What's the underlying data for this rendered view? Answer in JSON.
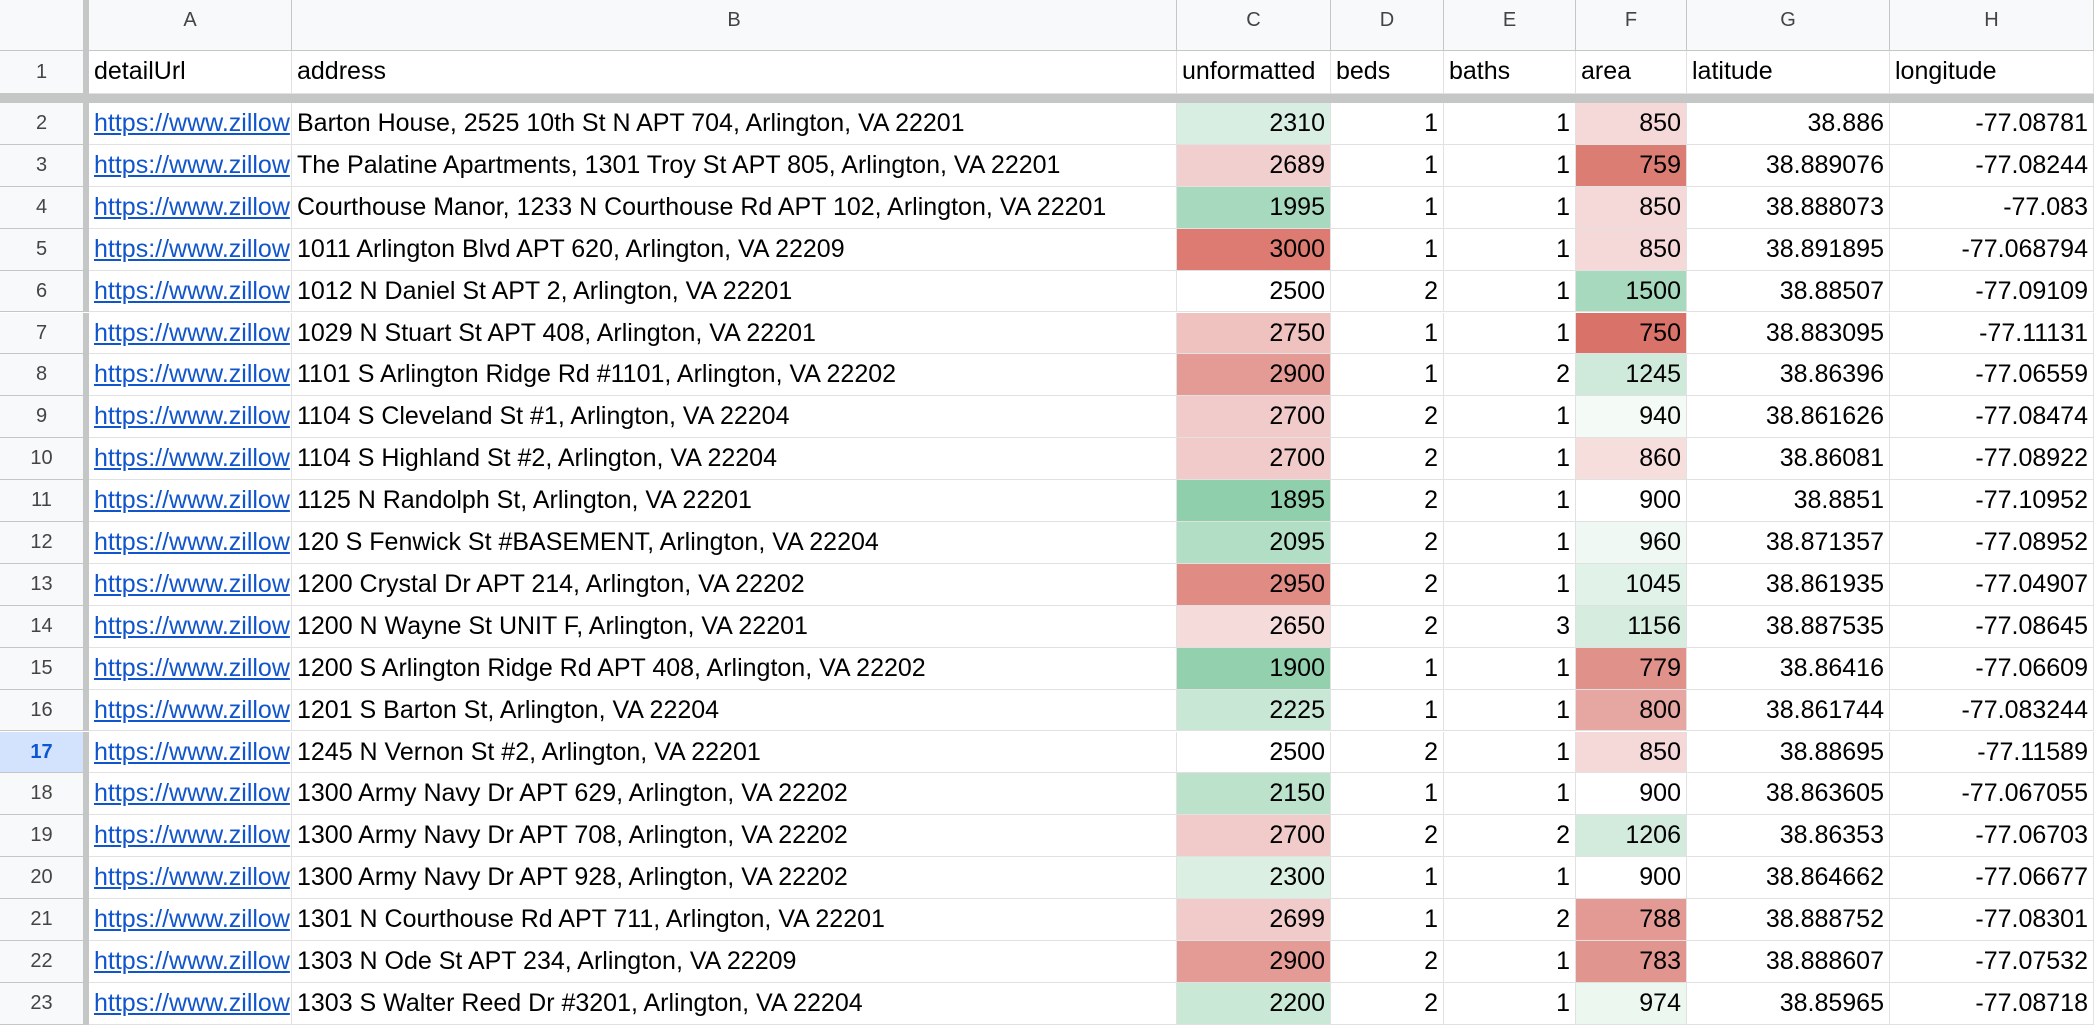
{
  "sheet": {
    "column_letters": [
      "A",
      "B",
      "C",
      "D",
      "E",
      "F",
      "G",
      "H"
    ],
    "row_numbers": [
      1,
      2,
      3,
      4,
      5,
      6,
      7,
      8,
      9,
      10,
      11,
      12,
      13,
      14,
      15,
      16,
      17,
      18,
      19,
      20,
      21,
      22,
      23
    ],
    "selected_row": 17,
    "header": [
      "detailUrl",
      "address",
      "unformatted",
      "beds",
      "baths",
      "area",
      "latitude",
      "longitude"
    ],
    "rows": [
      [
        "https://www.zillow",
        "Barton House, 2525 10th St N APT 704, Arlington, VA 22201",
        2310,
        1,
        1,
        850,
        38.886,
        -77.08781
      ],
      [
        "https://www.zillow",
        "The Palatine Apartments, 1301 Troy St APT 805, Arlington, VA 22201",
        2689,
        1,
        1,
        759,
        38.889076,
        -77.08244
      ],
      [
        "https://www.zillow",
        "Courthouse Manor, 1233 N Courthouse Rd APT 102, Arlington, VA 22201",
        1995,
        1,
        1,
        850,
        38.888073,
        -77.083
      ],
      [
        "https://www.zillow",
        "1011 Arlington Blvd APT 620, Arlington, VA 22209",
        3000,
        1,
        1,
        850,
        38.891895,
        -77.068794
      ],
      [
        "https://www.zillow",
        "1012 N Daniel St APT 2, Arlington, VA 22201",
        2500,
        2,
        1,
        1500,
        38.88507,
        -77.09109
      ],
      [
        "https://www.zillow",
        "1029 N Stuart St APT 408, Arlington, VA 22201",
        2750,
        1,
        1,
        750,
        38.883095,
        -77.11131
      ],
      [
        "https://www.zillow",
        "1101 S Arlington Ridge Rd #1101, Arlington, VA 22202",
        2900,
        1,
        2,
        1245,
        38.86396,
        -77.06559
      ],
      [
        "https://www.zillow",
        "1104 S Cleveland St #1, Arlington, VA 22204",
        2700,
        2,
        1,
        940,
        38.861626,
        -77.08474
      ],
      [
        "https://www.zillow",
        "1104 S Highland St #2, Arlington, VA 22204",
        2700,
        2,
        1,
        860,
        38.86081,
        -77.08922
      ],
      [
        "https://www.zillow",
        "1125 N Randolph St, Arlington, VA 22201",
        1895,
        2,
        1,
        900,
        38.8851,
        -77.10952
      ],
      [
        "https://www.zillow",
        "120 S Fenwick St #BASEMENT, Arlington, VA 22204",
        2095,
        2,
        1,
        960,
        38.871357,
        -77.08952
      ],
      [
        "https://www.zillow",
        "1200 Crystal Dr APT 214, Arlington, VA 22202",
        2950,
        2,
        1,
        1045,
        38.861935,
        -77.04907
      ],
      [
        "https://www.zillow",
        "1200 N Wayne St UNIT F, Arlington, VA 22201",
        2650,
        2,
        3,
        1156,
        38.887535,
        -77.08645
      ],
      [
        "https://www.zillow",
        "1200 S Arlington Ridge Rd APT 408, Arlington, VA 22202",
        1900,
        1,
        1,
        779,
        38.86416,
        -77.06609
      ],
      [
        "https://www.zillow",
        "1201 S Barton St, Arlington, VA 22204",
        2225,
        1,
        1,
        800,
        38.861744,
        -77.083244
      ],
      [
        "https://www.zillow",
        "1245 N Vernon St #2, Arlington, VA 22201",
        2500,
        2,
        1,
        850,
        38.88695,
        -77.11589
      ],
      [
        "https://www.zillow",
        "1300 Army Navy Dr APT 629, Arlington, VA 22202",
        2150,
        1,
        1,
        900,
        38.863605,
        -77.067055
      ],
      [
        "https://www.zillow",
        "1300 Army Navy Dr APT 708, Arlington, VA 22202",
        2700,
        2,
        2,
        1206,
        38.86353,
        -77.06703
      ],
      [
        "https://www.zillow",
        "1300 Army Navy Dr APT 928, Arlington, VA 22202",
        2300,
        1,
        1,
        900,
        38.864662,
        -77.06677
      ],
      [
        "https://www.zillow",
        "1301 N Courthouse Rd APT 711, Arlington, VA 22201",
        2699,
        1,
        2,
        788,
        38.888752,
        -77.08301
      ],
      [
        "https://www.zillow",
        "1303 N Ode St APT 234, Arlington, VA 22209",
        2900,
        2,
        1,
        783,
        38.888607,
        -77.07532
      ],
      [
        "https://www.zillow",
        "1303 S Walter Reed Dr #3201, Arlington, VA 22204",
        2200,
        2,
        1,
        974,
        38.85965,
        -77.08718
      ]
    ],
    "price_fill": [
      "#d9eee2",
      "#f2cfcf",
      "#a6d9bd",
      "#dd7b73",
      "#ffffff",
      "#efc1bf",
      "#e49b95",
      "#f1cbca",
      "#f1cbca",
      "#8fcfac",
      "#b1dec5",
      "#e08c85",
      "#f5dcdb",
      "#92d0ae",
      "#c8e7d5",
      "#ffffff",
      "#bde2cc",
      "#f1cbca",
      "#dbefe3",
      "#f1cbca",
      "#e49b95",
      "#c9e8d6"
    ],
    "area_fill": [
      "#f5d9d8",
      "#dc7d74",
      "#f5d9d8",
      "#f5d9d8",
      "#a6d9bd",
      "#d9736a",
      "#cfeadb",
      "#f4faf6",
      "#f6dedd",
      "#ffffff",
      "#eff8f2",
      "#e1f2e8",
      "#d5ecdf",
      "#e0918a",
      "#e6a6a1",
      "#f5d9d8",
      "#ffffff",
      "#d2ebdd",
      "#ffffff",
      "#e39a94",
      "#e1958f",
      "#ecf7f0"
    ]
  }
}
